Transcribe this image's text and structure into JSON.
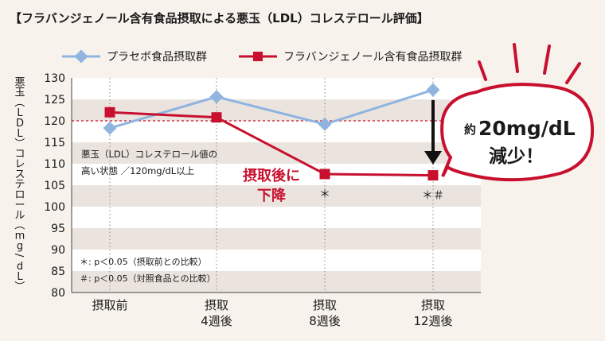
{
  "chart_data": {
    "type": "line",
    "title": "【フラバンジェノール含有食品摂取による悪玉（LDL）コレステロール評価】",
    "ylabel_parts": [
      "悪玉（LDL）コレステロール",
      "（mg/dL）"
    ],
    "categories": [
      [
        "摂取前"
      ],
      [
        "摂取",
        "4週後"
      ],
      [
        "摂取",
        "8週後"
      ],
      [
        "摂取",
        "12週後"
      ]
    ],
    "ylim": [
      80,
      130
    ],
    "yticks": [
      80,
      85,
      90,
      95,
      100,
      105,
      110,
      115,
      120,
      125,
      130
    ],
    "reference_line": 120,
    "series": [
      {
        "name": "プラセボ食品摂取群",
        "color": "#8fb4e0",
        "marker": "diamond",
        "values": [
          118.3,
          125.6,
          119.2,
          127.2
        ]
      },
      {
        "name": "フラバンジェノール含有食品摂取群",
        "color": "#c8102e",
        "marker": "square",
        "values": [
          122.0,
          120.8,
          107.6,
          107.3
        ]
      }
    ],
    "note_lines": [
      "悪玉（LDL）コレステロール値の",
      "高い状態 ／120mg/dL以上"
    ],
    "annotation_lines": [
      "摂取後に",
      "下降"
    ],
    "significance_marks": [
      "",
      "",
      "＊",
      "＊＃"
    ],
    "footnotes": [
      "＊: p＜0.05（摂取前との比較）",
      "＃: p＜0.05（対照食品との比較）"
    ],
    "callout": {
      "prefix": "約",
      "value": "20mg/dL",
      "suffix": "減少！"
    },
    "grid": "horizontal bands",
    "legend_position": "top"
  }
}
